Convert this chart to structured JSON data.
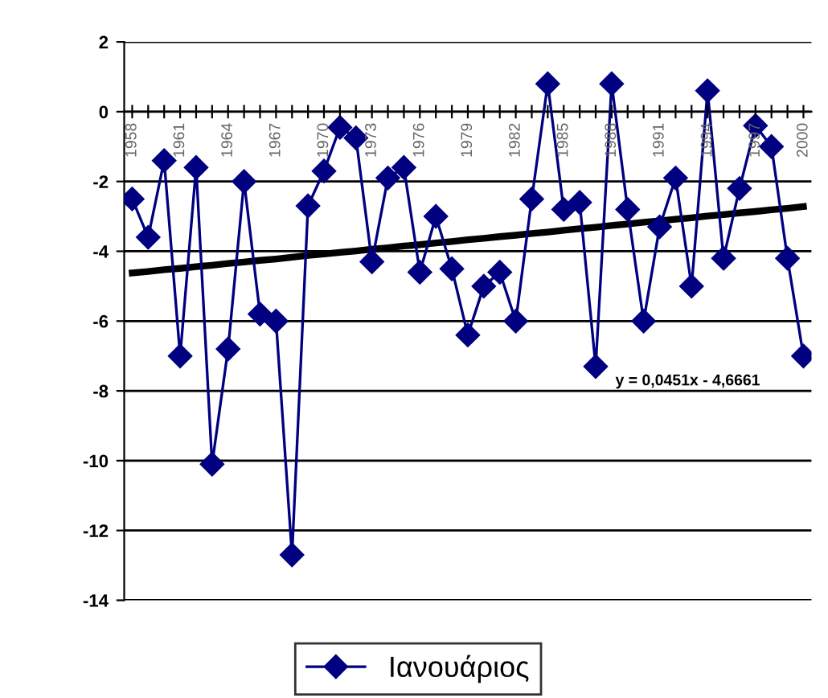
{
  "chart_data": {
    "type": "line",
    "categories": [
      "1958",
      null,
      null,
      "1961",
      null,
      null,
      "1964",
      null,
      null,
      "1967",
      null,
      null,
      "1970",
      null,
      null,
      "1973",
      null,
      null,
      "1976",
      null,
      null,
      "1979",
      null,
      null,
      "1982",
      null,
      null,
      "1985",
      null,
      null,
      "1988",
      null,
      null,
      "1991",
      null,
      null,
      "1994",
      null,
      null,
      "1997",
      null,
      null,
      "2000"
    ],
    "series": [
      {
        "name": "Ιανουάριος",
        "color": "#000080",
        "marker": "diamond",
        "values": [
          -2.5,
          -3.6,
          -1.4,
          -7.0,
          -1.6,
          -10.1,
          -6.8,
          -2.0,
          -5.8,
          -6.0,
          -12.7,
          -2.7,
          -1.7,
          -0.45,
          -0.75,
          -4.3,
          -1.9,
          -1.6,
          -4.6,
          -3.0,
          -4.5,
          -6.4,
          -5.0,
          -4.6,
          -6.0,
          -2.5,
          0.8,
          -2.8,
          -2.6,
          -7.3,
          0.8,
          -2.8,
          -6.0,
          -3.3,
          -1.9,
          -5.0,
          0.6,
          -4.2,
          -2.2,
          -0.4,
          -1.0,
          -4.2,
          -7.0
        ]
      },
      {
        "type": "line",
        "color": "#000000",
        "marker": "none",
        "values": [
          -4.62,
          -4.58,
          -4.53,
          -4.49,
          -4.44,
          -4.4,
          -4.35,
          -4.31,
          -4.26,
          -4.22,
          -4.17,
          -4.12,
          -4.08,
          -4.03,
          -3.99,
          -3.94,
          -3.9,
          -3.85,
          -3.81,
          -3.76,
          -3.72,
          -3.67,
          -3.63,
          -3.58,
          -3.54,
          -3.49,
          -3.45,
          -3.4,
          -3.35,
          -3.31,
          -3.26,
          -3.22,
          -3.17,
          -3.13,
          -3.08,
          -3.04,
          -2.99,
          -2.95,
          -2.9,
          -2.86,
          -2.81,
          -2.77,
          -2.72
        ]
      }
    ],
    "annotations": [
      "y = 0,0451x - 4,6661"
    ],
    "ylim": [
      -14,
      2
    ],
    "yticks": [
      -14,
      -12,
      -10,
      -8,
      -6,
      -4,
      -2,
      0,
      2
    ],
    "grid": "y",
    "legend": "bottom",
    "line_style": "solid"
  }
}
